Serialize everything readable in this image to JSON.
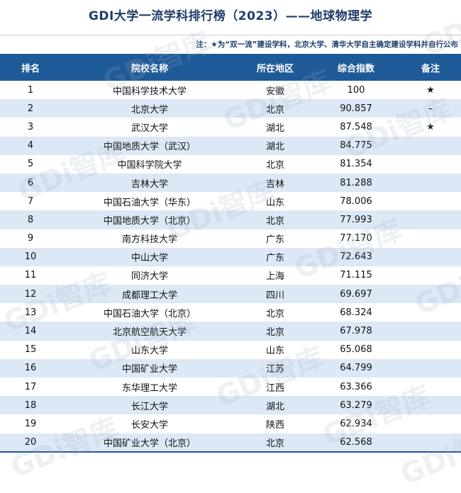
{
  "title": "GDI大学一流学科排行榜（2023）——地球物理学",
  "note": "注：★为“双一流”建设学科，北京大学、清华大学自主确定建设学科并自行公布",
  "columns": [
    "排名",
    "院校名称",
    "所在地区",
    "综合指数",
    "备注"
  ],
  "rows": [
    {
      "rank": "1",
      "school": "中国科学技术大学",
      "region": "安徽",
      "score": "100",
      "remark": "★"
    },
    {
      "rank": "2",
      "school": "北京大学",
      "region": "北京",
      "score": "90.857",
      "remark": "–"
    },
    {
      "rank": "3",
      "school": "武汉大学",
      "region": "湖北",
      "score": "87.548",
      "remark": "★"
    },
    {
      "rank": "4",
      "school": "中国地质大学（武汉）",
      "region": "湖北",
      "score": "84.775",
      "remark": ""
    },
    {
      "rank": "5",
      "school": "中国科学院大学",
      "region": "北京",
      "score": "81.354",
      "remark": ""
    },
    {
      "rank": "6",
      "school": "吉林大学",
      "region": "吉林",
      "score": "81.288",
      "remark": ""
    },
    {
      "rank": "7",
      "school": "中国石油大学（华东）",
      "region": "山东",
      "score": "78.006",
      "remark": ""
    },
    {
      "rank": "8",
      "school": "中国地质大学（北京）",
      "region": "北京",
      "score": "77.993",
      "remark": ""
    },
    {
      "rank": "9",
      "school": "南方科技大学",
      "region": "广东",
      "score": "77.170",
      "remark": ""
    },
    {
      "rank": "10",
      "school": "中山大学",
      "region": "广东",
      "score": "72.643",
      "remark": ""
    },
    {
      "rank": "11",
      "school": "同济大学",
      "region": "上海",
      "score": "71.115",
      "remark": ""
    },
    {
      "rank": "12",
      "school": "成都理工大学",
      "region": "四川",
      "score": "69.697",
      "remark": ""
    },
    {
      "rank": "13",
      "school": "中国石油大学（北京）",
      "region": "北京",
      "score": "68.324",
      "remark": ""
    },
    {
      "rank": "14",
      "school": "北京航空航天大学",
      "region": "北京",
      "score": "67.978",
      "remark": ""
    },
    {
      "rank": "15",
      "school": "山东大学",
      "region": "山东",
      "score": "65.068",
      "remark": ""
    },
    {
      "rank": "16",
      "school": "中国矿业大学",
      "region": "江苏",
      "score": "64.799",
      "remark": ""
    },
    {
      "rank": "17",
      "school": "东华理工大学",
      "region": "江西",
      "score": "63.366",
      "remark": ""
    },
    {
      "rank": "18",
      "school": "长江大学",
      "region": "湖北",
      "score": "63.279",
      "remark": ""
    },
    {
      "rank": "19",
      "school": "长安大学",
      "region": "陕西",
      "score": "62.934",
      "remark": ""
    },
    {
      "rank": "20",
      "school": "中国矿业大学（北京）",
      "region": "北京",
      "score": "62.568",
      "remark": ""
    }
  ],
  "watermark": "GDi智库",
  "colors": {
    "header_bg": "#1f5a98",
    "stripe": "#dce8f6",
    "title": "#1f3d6b"
  }
}
